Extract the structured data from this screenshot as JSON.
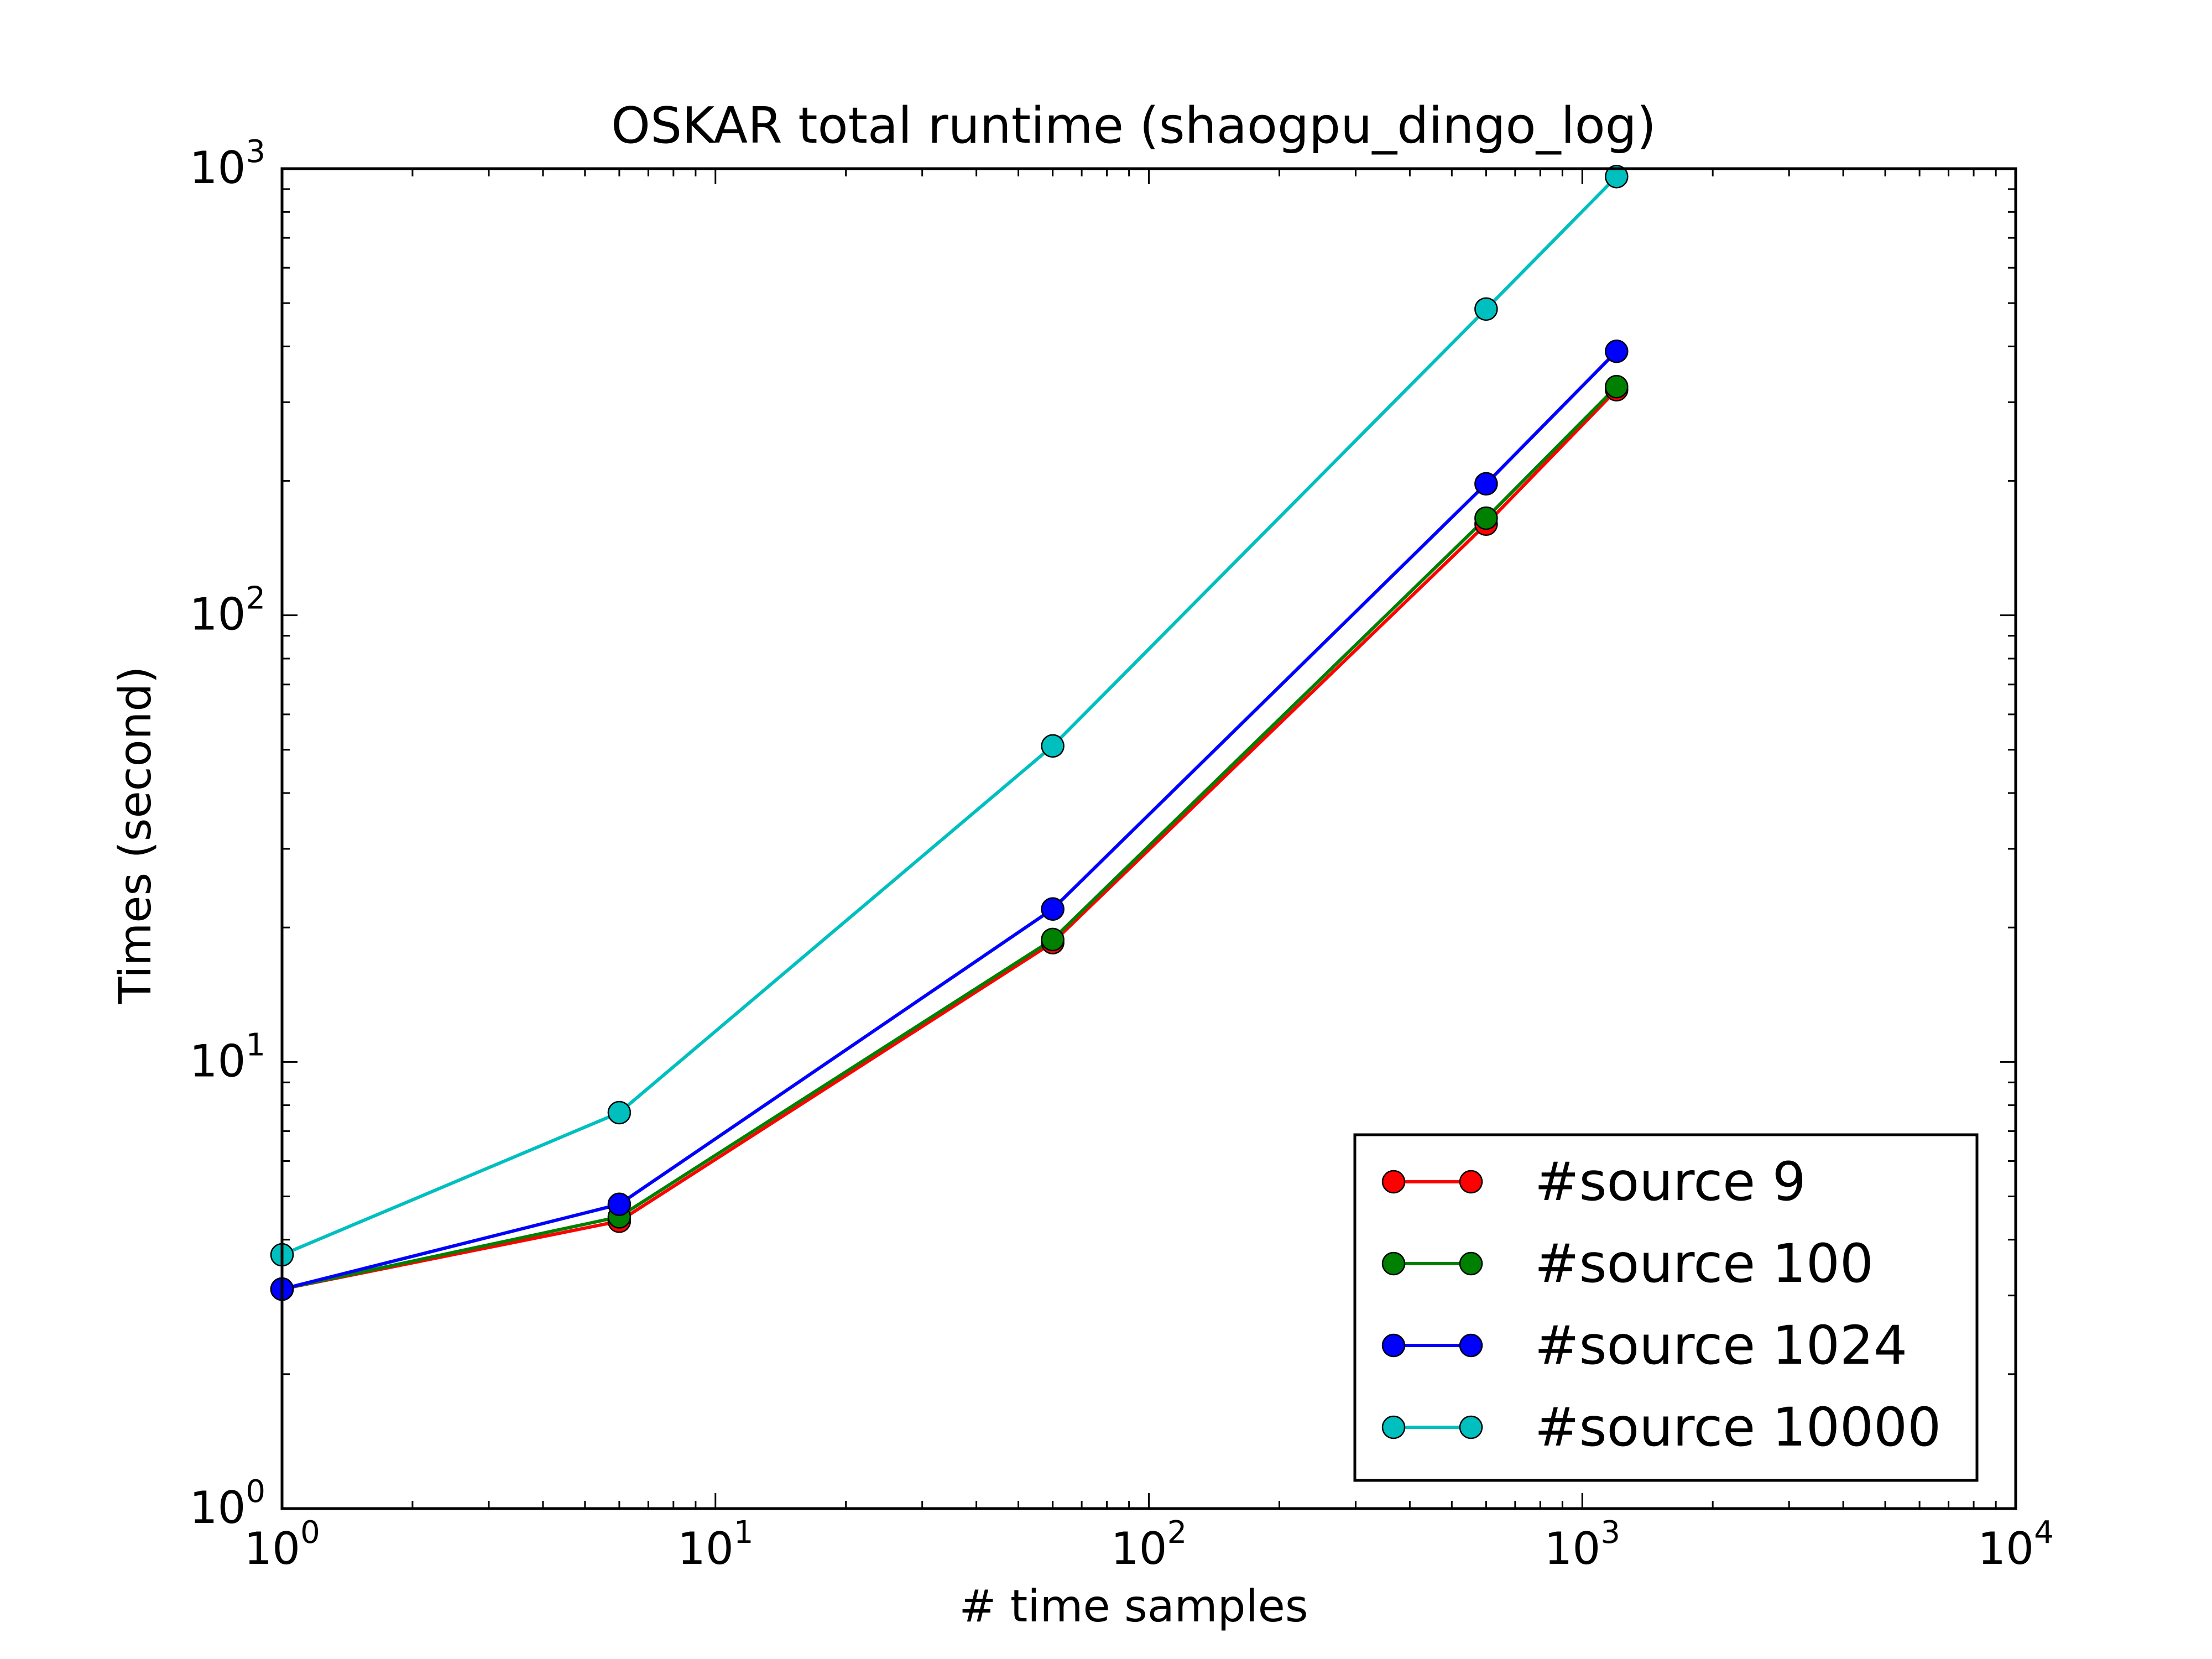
{
  "chart_data": {
    "type": "line",
    "title": "OSKAR total runtime (shaogpu_dingo_log)",
    "xlabel": "# time samples",
    "ylabel": "Times (second)",
    "xscale": "log",
    "yscale": "log",
    "xlim": [
      1,
      10000
    ],
    "ylim": [
      1,
      1000
    ],
    "x_ticks": [
      {
        "value": 1,
        "base": "10",
        "exp": "0"
      },
      {
        "value": 10,
        "base": "10",
        "exp": "1"
      },
      {
        "value": 100,
        "base": "10",
        "exp": "2"
      },
      {
        "value": 1000,
        "base": "10",
        "exp": "3"
      },
      {
        "value": 10000,
        "base": "10",
        "exp": "4"
      }
    ],
    "y_ticks": [
      {
        "value": 1,
        "base": "10",
        "exp": "0"
      },
      {
        "value": 10,
        "base": "10",
        "exp": "1"
      },
      {
        "value": 100,
        "base": "10",
        "exp": "2"
      },
      {
        "value": 1000,
        "base": "10",
        "exp": "3"
      }
    ],
    "grid": false,
    "legend_position": "lower-right",
    "x": [
      1,
      6,
      60,
      600,
      1200
    ],
    "series": [
      {
        "name": "#source 9",
        "color": "#ff0000",
        "values": [
          3.1,
          4.4,
          18.5,
          160,
          320
        ]
      },
      {
        "name": "#source 100",
        "color": "#008000",
        "values": [
          3.1,
          4.5,
          18.8,
          165,
          325
        ]
      },
      {
        "name": "#source 1024",
        "color": "#0000ff",
        "values": [
          3.1,
          4.8,
          22,
          197,
          390
        ]
      },
      {
        "name": "#source 10000",
        "color": "#00bfbf",
        "values": [
          3.7,
          7.7,
          51,
          485,
          960
        ]
      }
    ]
  }
}
